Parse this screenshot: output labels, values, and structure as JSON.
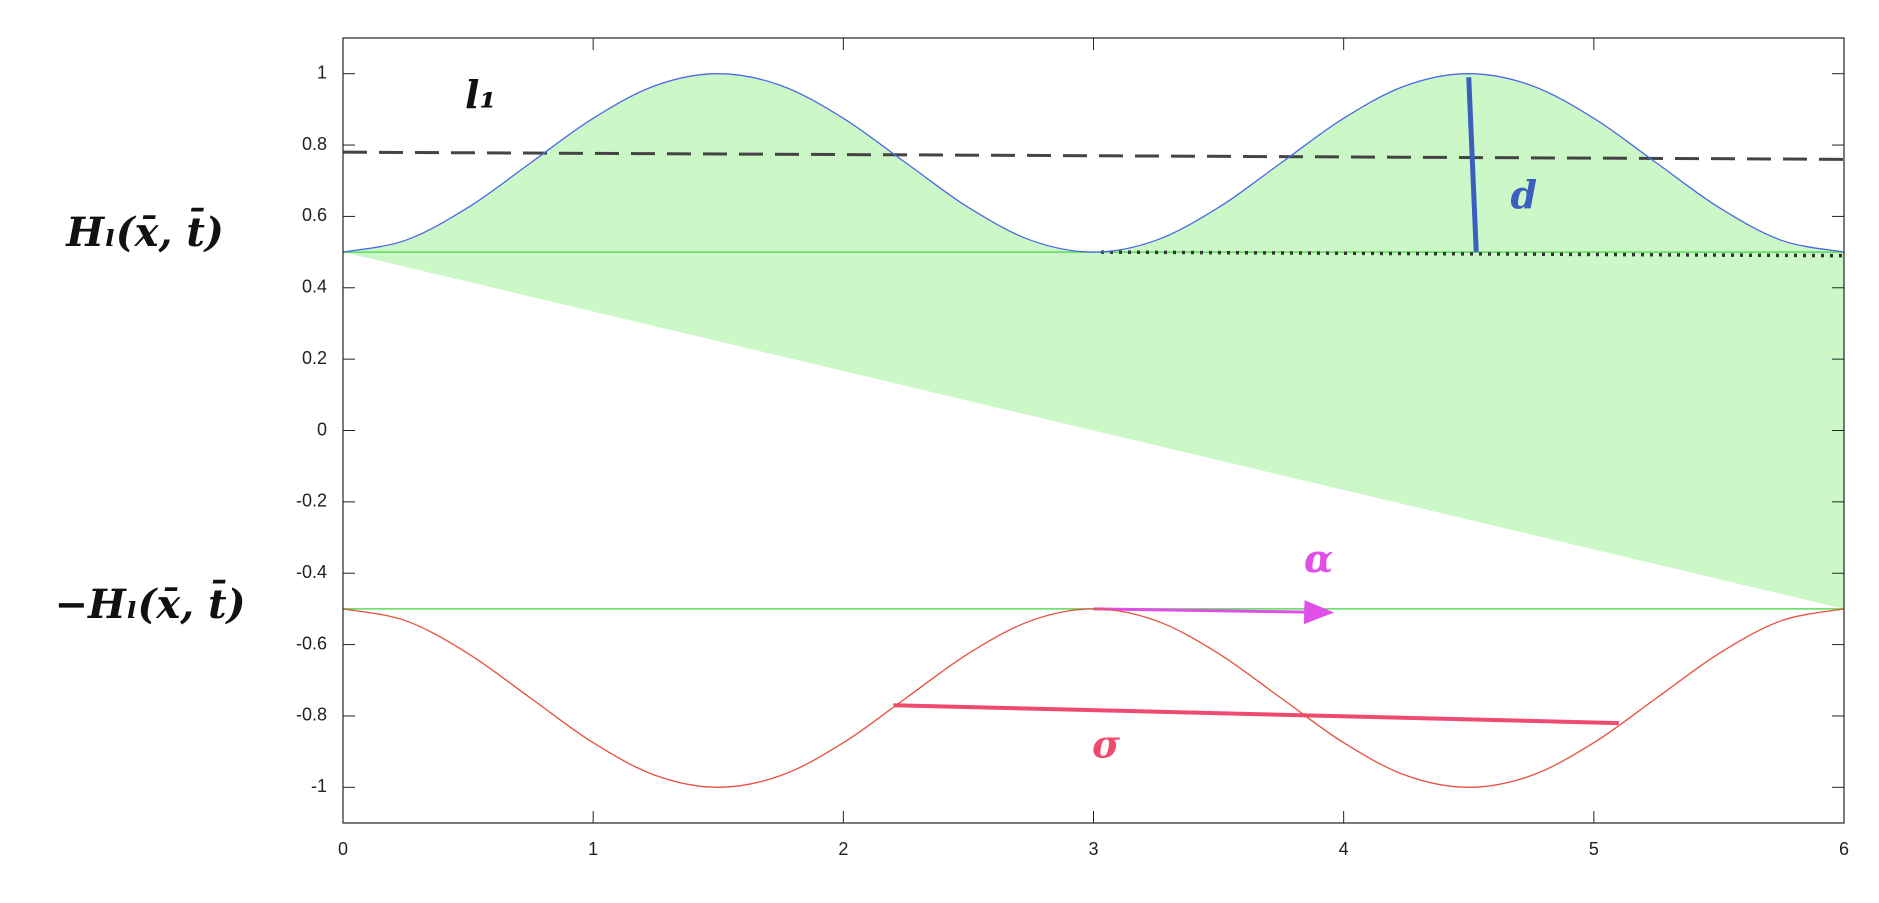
{
  "chart_data": {
    "type": "line",
    "x": [
      0,
      0.25,
      0.5,
      0.75,
      1,
      1.25,
      1.5,
      1.75,
      2,
      2.25,
      2.5,
      2.75,
      3,
      3.25,
      3.5,
      3.75,
      4,
      4.25,
      4.5,
      4.75,
      5,
      5.25,
      5.5,
      5.75,
      6
    ],
    "series": [
      {
        "color": "#4a68e8",
        "values": [
          0.5,
          0.533,
          0.625,
          0.75,
          0.875,
          0.967,
          1,
          0.967,
          0.875,
          0.75,
          0.625,
          0.533,
          0.5,
          0.533,
          0.625,
          0.75,
          0.875,
          0.967,
          1,
          0.967,
          0.875,
          0.75,
          0.625,
          0.533,
          0.5
        ]
      },
      {
        "color": "#e8503c",
        "values": [
          -0.5,
          -0.533,
          -0.625,
          -0.75,
          -0.875,
          -0.967,
          -1,
          -0.967,
          -0.875,
          -0.75,
          -0.625,
          -0.533,
          -0.5,
          -0.533,
          -0.625,
          -0.75,
          -0.875,
          -0.967,
          -1,
          -0.967,
          -0.875,
          -0.75,
          -0.625,
          -0.533,
          -0.5
        ]
      }
    ],
    "fill_color": "#ccf8c8",
    "xlim": [
      0,
      6
    ],
    "xticks": [
      0,
      1,
      2,
      3,
      4,
      5,
      6
    ],
    "ylim": [
      -1.1,
      1.1
    ],
    "yticks": [
      -1,
      -0.8,
      -0.6,
      -0.4,
      -0.2,
      0,
      0.2,
      0.4,
      0.6,
      0.8,
      1
    ],
    "lines": [
      {
        "x": [
          0,
          6
        ],
        "y": [
          0.5,
          0.5
        ],
        "color": "#5ddc5d",
        "style": "solid",
        "width": 1.5
      },
      {
        "x": [
          0,
          6
        ],
        "y": [
          -0.5,
          -0.5
        ],
        "color": "#5ddc5d",
        "style": "solid",
        "width": 1.5
      },
      {
        "x": [
          0,
          6
        ],
        "y": [
          0.78,
          0.76
        ],
        "color": "#444444",
        "style": "dashed",
        "width": 3
      },
      {
        "x": [
          3.03,
          6
        ],
        "y": [
          0.5,
          0.49
        ],
        "color": "#333333",
        "style": "dotted",
        "width": 3.5
      },
      {
        "x": [
          4.5,
          4.53
        ],
        "y": [
          0.99,
          0.5
        ],
        "color": "#3a5fc0",
        "style": "solid",
        "width": 5
      },
      {
        "x": [
          3,
          3.95
        ],
        "y": [
          -0.5,
          -0.51
        ],
        "color": "#e050e8",
        "style": "arrow",
        "width": 3
      },
      {
        "x": [
          2.2,
          5.1
        ],
        "y": [
          -0.77,
          -0.82
        ],
        "color": "#f04a70",
        "style": "solid",
        "width": 4
      }
    ],
    "annotations": [
      {
        "text": "l₁",
        "x": 0.55,
        "y": 0.93,
        "color": "#111111"
      },
      {
        "text": "d",
        "x": 4.72,
        "y": 0.65,
        "color": "#3a5fc0"
      },
      {
        "text": "α",
        "x": 3.9,
        "y": -0.37,
        "color": "#e050e8"
      },
      {
        "text": "σ",
        "x": 3.05,
        "y": -0.89,
        "color": "#f04a70"
      }
    ],
    "ylabel_upper": "Hₗ(x̄, t̄)",
    "ylabel_lower": "−Hₗ(x̄, t̄)"
  }
}
